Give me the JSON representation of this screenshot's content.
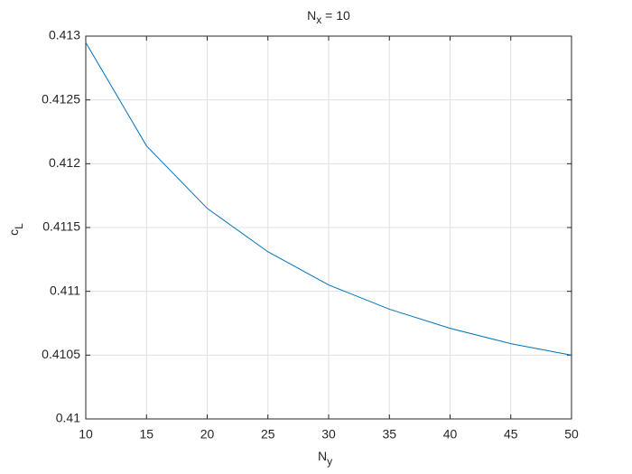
{
  "chart_data": {
    "type": "line",
    "title": {
      "main": "N",
      "sub": "x",
      "rest": " = 10"
    },
    "xlabel": {
      "main": "N",
      "sub": "y"
    },
    "ylabel": {
      "main": "c",
      "sub": "L"
    },
    "x": [
      10,
      15,
      20,
      25,
      30,
      35,
      40,
      45,
      50
    ],
    "series": [
      {
        "color": "#0072bd",
        "values": [
          0.41295,
          0.41214,
          0.41165,
          0.41131,
          0.41105,
          0.41086,
          0.41071,
          0.41059,
          0.4105
        ]
      }
    ],
    "xlim": [
      10,
      50
    ],
    "xticks": [
      10,
      15,
      20,
      25,
      30,
      35,
      40,
      45,
      50
    ],
    "ylim": [
      0.41,
      0.413
    ],
    "yticks": [
      0.41,
      0.4105,
      0.411,
      0.4115,
      0.412,
      0.4125,
      0.413
    ],
    "grid": true
  }
}
